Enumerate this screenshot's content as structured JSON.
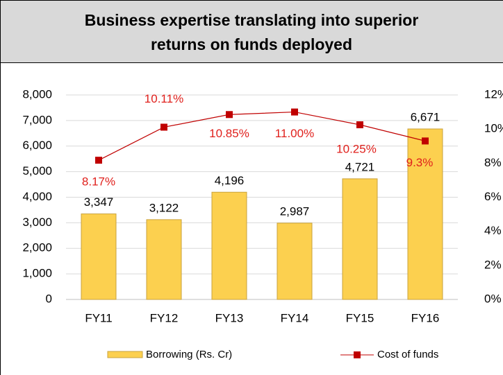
{
  "chart_data": {
    "type": "bar-line",
    "title": [
      "Business expertise translating into superior",
      "returns on funds deployed"
    ],
    "categories": [
      "FY11",
      "FY12",
      "FY13",
      "FY14",
      "FY15",
      "FY16"
    ],
    "series": [
      {
        "name": "Borrowing (Rs. Cr)",
        "color": "#fcd04f",
        "values": [
          3347,
          3122,
          4196,
          2987,
          4721,
          6671
        ],
        "value_labels": [
          "3,347",
          "3,122",
          "4,196",
          "2,987",
          "4,721",
          "6,671"
        ]
      },
      {
        "name": "Cost of funds",
        "color": "#c00000",
        "axis": "y2",
        "values": [
          8.17,
          10.11,
          10.85,
          11.0,
          10.25,
          9.3
        ],
        "value_labels": [
          "8.17%",
          "10.11%",
          "10.85%",
          "11.00%",
          "10.25%",
          "9.3%"
        ]
      }
    ],
    "ylim": [
      0,
      8000
    ],
    "yticks": [
      0,
      {
        "value": 1000,
        "label": "1,000"
      },
      {
        "value": 2000,
        "label": "2,000"
      },
      {
        "value": 3000,
        "label": "3,000"
      },
      {
        "value": 4000,
        "label": "4,000"
      },
      {
        "value": 5000,
        "label": "5,000"
      },
      {
        "value": 6000,
        "label": "6,000"
      },
      {
        "value": 7000,
        "label": "7,000"
      },
      {
        "value": 8000,
        "label": "8,000"
      }
    ],
    "y2lim": [
      0,
      12
    ],
    "y2ticks": [
      {
        "value": 0,
        "label": "0%"
      },
      {
        "value": 2,
        "label": "2%"
      },
      {
        "value": 4,
        "label": "4%"
      },
      {
        "value": 6,
        "label": "6%"
      },
      {
        "value": 8,
        "label": "8%"
      },
      {
        "value": 10,
        "label": "10%"
      },
      {
        "value": 12,
        "label": "12%"
      }
    ],
    "grid": true,
    "legend": "bottom"
  }
}
